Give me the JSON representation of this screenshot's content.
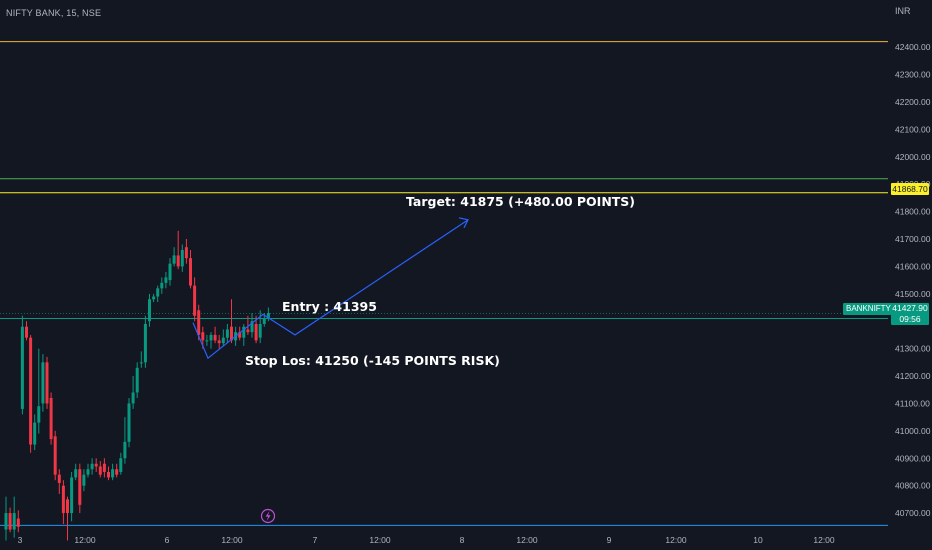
{
  "header": {
    "symbol": "NIFTY BANK, 15, NSE",
    "currency": "INR"
  },
  "price_scale": {
    "highlight_price": "41868.70",
    "ticker": "BANKNIFTY",
    "last_price": "41427.90",
    "countdown": "09:56"
  },
  "annotations": {
    "target": "Target: 41875 (+480.00 POINTS)",
    "entry": "Entry : 41395",
    "stop": "Stop Los: 41250 (-145 POINTS RISK)"
  },
  "colors": {
    "background": "#131722",
    "up": "#089981",
    "down": "#f23645",
    "target_line": "#fbf028",
    "resistance_line": "#f0b33a",
    "support_line": "#4caf50",
    "bottom_line": "#2196f3",
    "path": "#2962ff"
  },
  "chart_data": {
    "type": "candlestick",
    "title": "NIFTY BANK, 15, NSE",
    "ylim": [
      40620,
      42510
    ],
    "y_ticks": [
      "42400.00",
      "42300.00",
      "42200.00",
      "42100.00",
      "42000.00",
      "41900.00",
      "41800.00",
      "41700.00",
      "41600.00",
      "41500.00",
      "41300.00",
      "41200.00",
      "41100.00",
      "41000.00",
      "40900.00",
      "40800.00",
      "40700.00"
    ],
    "x_ticks": [
      "3",
      "12:00",
      "6",
      "12:00",
      "7",
      "12:00",
      "8",
      "12:00",
      "9",
      "12:00",
      "10",
      "12:00"
    ],
    "levels": [
      {
        "price": 42420,
        "role": "resistance"
      },
      {
        "price": 41920,
        "role": "support"
      },
      {
        "price": 41868.7,
        "role": "target"
      },
      {
        "price": 41410,
        "role": "entry"
      },
      {
        "price": 40655,
        "role": "support-bottom"
      }
    ],
    "projection_path": [
      41395,
      41265,
      41425,
      41350,
      41770
    ],
    "candles": [
      [
        40640,
        40700,
        40600,
        40760
      ],
      [
        40700,
        40640,
        40630,
        40720
      ],
      [
        40640,
        40700,
        40610,
        40760
      ],
      [
        40680,
        40650,
        40630,
        40710
      ],
      [
        41080,
        41380,
        41060,
        41420
      ],
      [
        41380,
        41340,
        41330,
        41400
      ],
      [
        41340,
        40950,
        40920,
        41350
      ],
      [
        40950,
        41030,
        40930,
        41060
      ],
      [
        41030,
        41090,
        40990,
        41300
      ],
      [
        41100,
        41250,
        41070,
        41280
      ],
      [
        41250,
        41100,
        41080,
        41270
      ],
      [
        41120,
        40970,
        40950,
        41140
      ],
      [
        40980,
        40840,
        40820,
        41000
      ],
      [
        40840,
        40810,
        40770,
        40860
      ],
      [
        40800,
        40700,
        40660,
        40820
      ],
      [
        40750,
        40700,
        40600,
        40760
      ],
      [
        40700,
        40830,
        40670,
        40850
      ],
      [
        40830,
        40860,
        40820,
        40880
      ],
      [
        40860,
        40730,
        40700,
        40880
      ],
      [
        40800,
        40840,
        40780,
        40860
      ],
      [
        40840,
        40860,
        40830,
        40880
      ],
      [
        40860,
        40880,
        40840,
        40900
      ],
      [
        40880,
        40870,
        40850,
        40900
      ],
      [
        40870,
        40840,
        40830,
        40890
      ],
      [
        40880,
        40850,
        40830,
        40900
      ],
      [
        40850,
        40830,
        40820,
        40870
      ],
      [
        40830,
        40860,
        40820,
        40880
      ],
      [
        40860,
        40840,
        40830,
        40880
      ],
      [
        40850,
        40900,
        40840,
        40920
      ],
      [
        40900,
        40960,
        40880,
        41050
      ],
      [
        40960,
        41100,
        40940,
        41120
      ],
      [
        41100,
        41140,
        41080,
        41200
      ],
      [
        41140,
        41230,
        41120,
        41250
      ],
      [
        41250,
        41250,
        41230,
        41290
      ],
      [
        41250,
        41390,
        41230,
        41420
      ],
      [
        41400,
        41480,
        41380,
        41500
      ],
      [
        41480,
        41490,
        41470,
        41500
      ],
      [
        41490,
        41520,
        41470,
        41530
      ],
      [
        41520,
        41540,
        41500,
        41560
      ],
      [
        41540,
        41560,
        41520,
        41580
      ],
      [
        41550,
        41610,
        41530,
        41630
      ],
      [
        41610,
        41640,
        41600,
        41670
      ],
      [
        41640,
        41600,
        41590,
        41730
      ],
      [
        41600,
        41660,
        41580,
        41680
      ],
      [
        41670,
        41630,
        41610,
        41700
      ],
      [
        41630,
        41530,
        41520,
        41660
      ],
      [
        41530,
        41420,
        41400,
        41560
      ],
      [
        41440,
        41350,
        41330,
        41460
      ],
      [
        41360,
        41330,
        41300,
        41380
      ],
      [
        41330,
        41330,
        41310,
        41350
      ],
      [
        41330,
        41350,
        41300,
        41360
      ],
      [
        41350,
        41330,
        41320,
        41380
      ],
      [
        41330,
        41320,
        41300,
        41350
      ],
      [
        41320,
        41340,
        41310,
        41370
      ],
      [
        41340,
        41370,
        41320,
        41390
      ],
      [
        41380,
        41330,
        41320,
        41480
      ],
      [
        41330,
        41360,
        41310,
        41380
      ],
      [
        41360,
        41340,
        41330,
        41380
      ],
      [
        41340,
        41380,
        41310,
        41390
      ],
      [
        41370,
        41360,
        41350,
        41420
      ],
      [
        41360,
        41400,
        41340,
        41430
      ],
      [
        41390,
        41330,
        41320,
        41420
      ],
      [
        41340,
        41390,
        41320,
        41440
      ],
      [
        41390,
        41410,
        41380,
        41430
      ],
      [
        41410,
        41430,
        41400,
        41450
      ]
    ]
  }
}
